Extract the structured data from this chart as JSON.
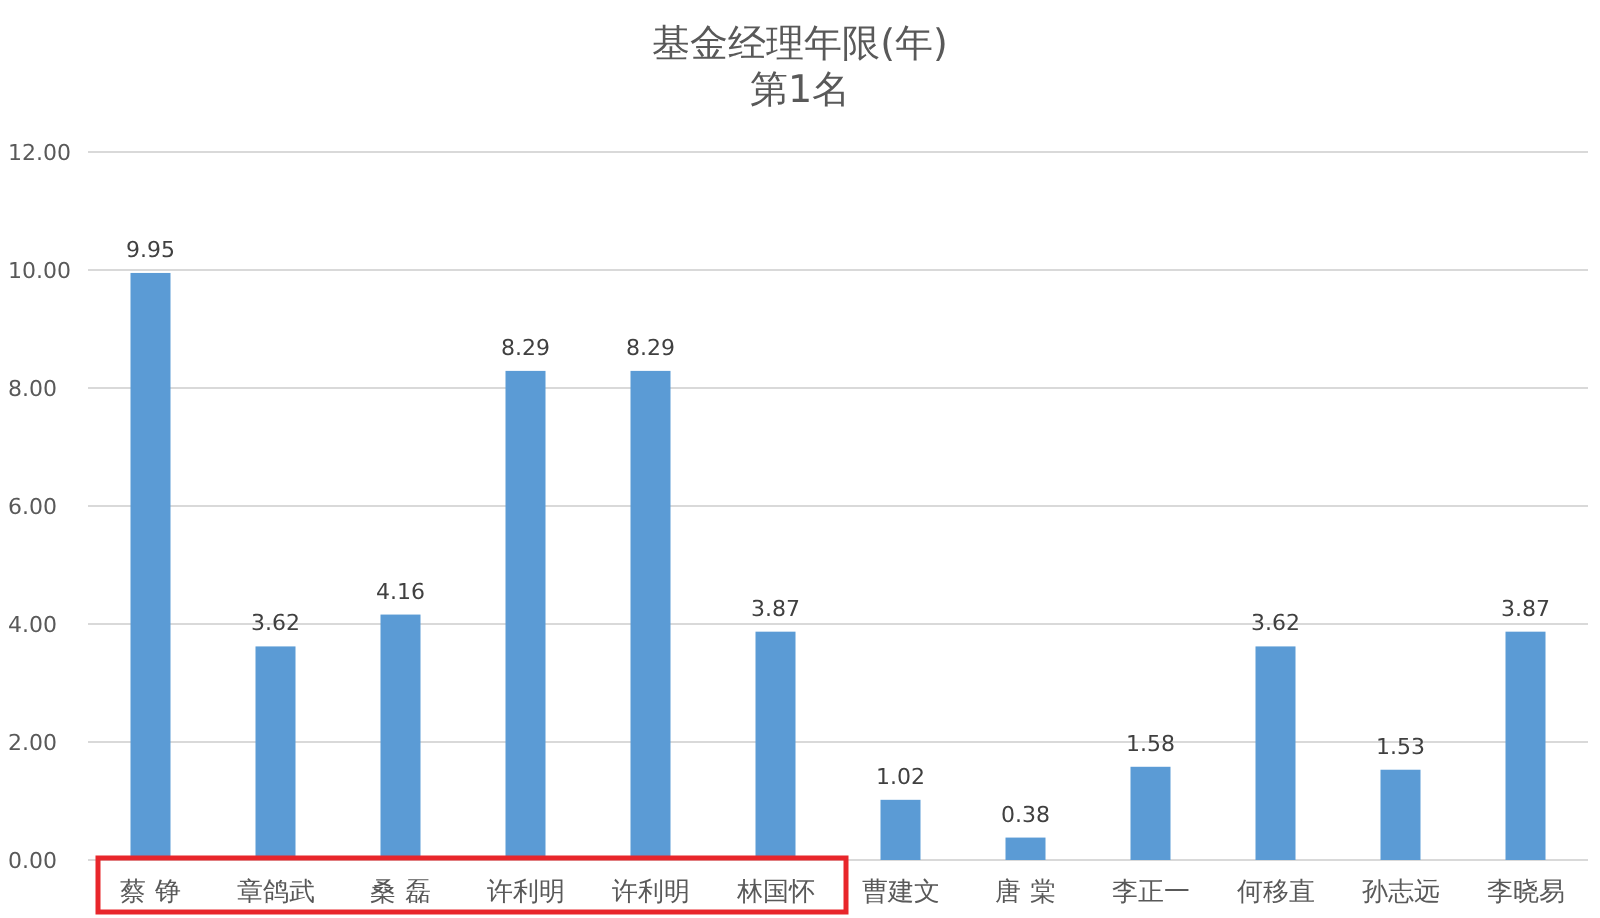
{
  "chart_data": {
    "type": "bar",
    "title": "基金经理年限(年)",
    "subtitle": "第1名",
    "categories": [
      "蔡 铮",
      "章鸽武",
      "桑 磊",
      "许利明",
      "许利明",
      "林国怀",
      "曹建文",
      "唐 棠",
      "李正一",
      "何移直",
      "孙志远",
      "李晓易"
    ],
    "values": [
      9.95,
      3.62,
      4.16,
      8.29,
      8.29,
      3.87,
      1.02,
      0.38,
      1.58,
      3.62,
      1.53,
      3.87
    ],
    "color": "#5b9bd5",
    "ylim": [
      0,
      12
    ],
    "yticks": [
      {
        "value": 0,
        "label": "0.00"
      },
      {
        "value": 2,
        "label": "2.00"
      },
      {
        "value": 4,
        "label": "4.00"
      },
      {
        "value": 6,
        "label": "6.00"
      },
      {
        "value": 8,
        "label": "8.00"
      },
      {
        "value": 10,
        "label": "10.00"
      },
      {
        "value": 12,
        "label": "12.00"
      }
    ],
    "grid": "y",
    "data_labels": true
  }
}
